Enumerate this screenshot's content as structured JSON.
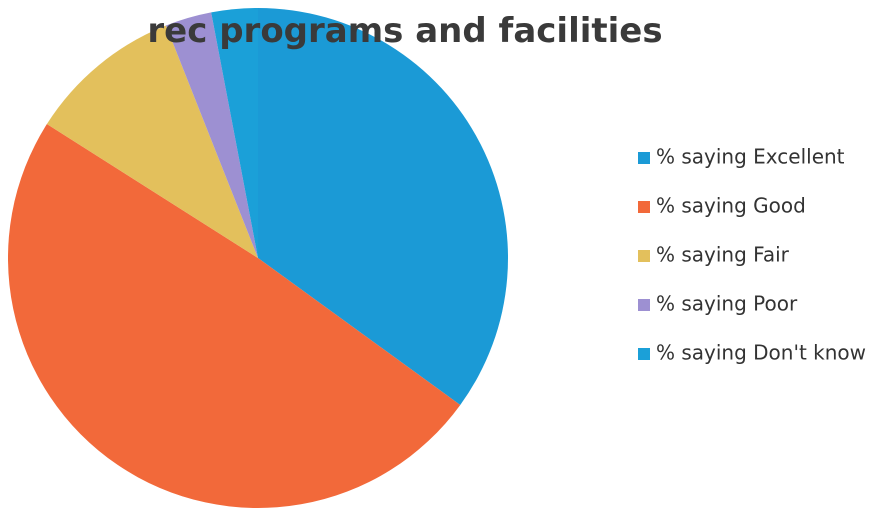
{
  "chart_data": {
    "type": "pie",
    "title": "rec programs and facilities",
    "categories": [
      "% saying Excellent",
      "% saying Good",
      "% saying Fair",
      "% saying Poor",
      "% saying Don't know"
    ],
    "values": [
      35,
      49,
      10,
      3,
      3
    ],
    "colors": [
      "#1b9ad6",
      "#f2693a",
      "#e3c05c",
      "#9d90d2",
      "#1ba0d8"
    ],
    "legend": "right"
  }
}
